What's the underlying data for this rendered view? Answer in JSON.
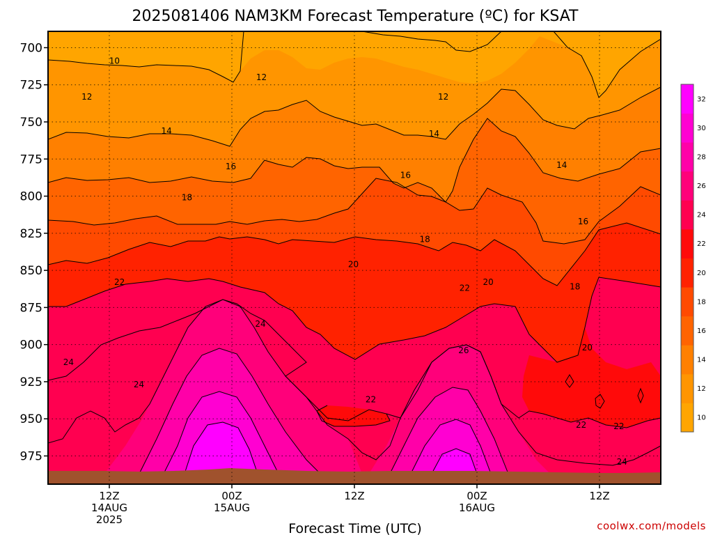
{
  "title": "2025081406 NAM3KM Forecast Temperature (ºC) for KSAT",
  "xlabel": "Forecast Time (UTC)",
  "credit": "coolwx.com/models",
  "chart_data": {
    "type": "heatmap",
    "title": "2025081406 NAM3KM Forecast Temperature (ºC) for KSAT",
    "xlabel": "Forecast Time (UTC)",
    "ylabel": "",
    "x_ticks": [
      {
        "hour": 12,
        "lines": [
          "12Z",
          "14AUG",
          "2025"
        ]
      },
      {
        "hour": 24,
        "lines": [
          "00Z",
          "15AUG"
        ]
      },
      {
        "hour": 36,
        "lines": [
          "12Z"
        ]
      },
      {
        "hour": 48,
        "lines": [
          "00Z",
          "16AUG"
        ]
      },
      {
        "hour": 60,
        "lines": [
          "12Z"
        ]
      }
    ],
    "xlim_hours": [
      6,
      66
    ],
    "y_axis": "pressure (hPa), inverted",
    "y_ticks": [
      700,
      725,
      750,
      775,
      800,
      825,
      850,
      875,
      900,
      925,
      950,
      975
    ],
    "ylim": [
      994,
      689
    ],
    "grid": true,
    "contour_interval": 2,
    "colorbar": {
      "labels": [
        10,
        12,
        14,
        16,
        18,
        20,
        22,
        24,
        26,
        28,
        30,
        32
      ],
      "colors": [
        "#ffa500",
        "#ff9500",
        "#ff8000",
        "#ff6400",
        "#ff4a00",
        "#ff2200",
        "#ff0a0a",
        "#ff0050",
        "#ff007a",
        "#ff00a8",
        "#ff00d2",
        "#ff00ff"
      ]
    },
    "contour_labels": [
      {
        "value": 10,
        "hour": 12.5,
        "p": 709
      },
      {
        "value": 12,
        "hour": 9.8,
        "p": 733
      },
      {
        "value": 12,
        "hour": 26.9,
        "p": 720
      },
      {
        "value": 12,
        "hour": 44.7,
        "p": 733
      },
      {
        "value": 14,
        "hour": 17.6,
        "p": 756
      },
      {
        "value": 14,
        "hour": 43.8,
        "p": 758
      },
      {
        "value": 14,
        "hour": 56.3,
        "p": 779
      },
      {
        "value": 16,
        "hour": 23.9,
        "p": 780
      },
      {
        "value": 16,
        "hour": 41.0,
        "p": 786
      },
      {
        "value": 16,
        "hour": 58.4,
        "p": 817
      },
      {
        "value": 18,
        "hour": 19.6,
        "p": 801
      },
      {
        "value": 18,
        "hour": 42.9,
        "p": 829
      },
      {
        "value": 18,
        "hour": 57.6,
        "p": 861
      },
      {
        "value": 20,
        "hour": 35.9,
        "p": 846
      },
      {
        "value": 20,
        "hour": 49.1,
        "p": 858
      },
      {
        "value": 20,
        "hour": 58.8,
        "p": 902
      },
      {
        "value": 22,
        "hour": 13.0,
        "p": 858
      },
      {
        "value": 22,
        "hour": 46.8,
        "p": 862
      },
      {
        "value": 22,
        "hour": 37.6,
        "p": 937
      },
      {
        "value": 22,
        "hour": 58.2,
        "p": 954
      },
      {
        "value": 22,
        "hour": 61.9,
        "p": 955
      },
      {
        "value": 24,
        "hour": 8.0,
        "p": 912
      },
      {
        "value": 24,
        "hour": 14.9,
        "p": 927
      },
      {
        "value": 24,
        "hour": 26.8,
        "p": 886
      },
      {
        "value": 24,
        "hour": 62.2,
        "p": 979
      },
      {
        "value": 26,
        "hour": 46.7,
        "p": 904
      }
    ]
  }
}
